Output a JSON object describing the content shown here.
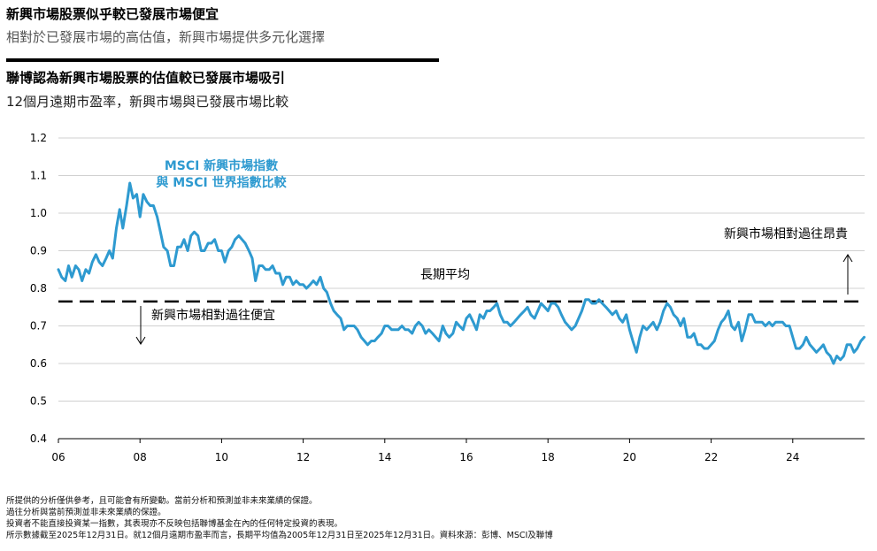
{
  "header": {
    "title": "新興市場股票似乎較已發展市場便宜",
    "subtitle": "相對於已發展市場的高估值，新興市場提供多元化選擇",
    "chart_title": "聯博認為新興市場股票的估值較已發展市場吸引",
    "chart_subtitle": "12個月遠期市盈率，新興市場與已發展市場比較"
  },
  "annotations": {
    "series_label_line1": "MSCI 新興市場指數",
    "series_label_line2": "與 MSCI 世界指數比較",
    "average_label": "長期平均",
    "expensive_label": "新興市場相對過往昂貴",
    "cheap_label": "新興市場相對過往便宜"
  },
  "footnotes": [
    "所提供的分析僅供參考，且可能會有所變動。當前分析和預測並非未來業績的保證。",
    "過往分析與當前預測並非未來業績的保證。",
    "投資者不能直接投資某一指數，其表現亦不反映包括聯博基金在內的任何特定投資的表現。",
    "所示數據截至2025年12月31日。就12個月遠期市盈率而言，長期平均值為2005年12月31日至2025年12月31日。資料來源：彭博、MSCI及聯博"
  ],
  "colors": {
    "series": "#2E9AD0",
    "grid": "#d0d0d0",
    "axis": "#000000",
    "average": "#000000"
  },
  "chart_data": {
    "type": "line",
    "x_tick_labels": [
      "06",
      "08",
      "10",
      "12",
      "14",
      "16",
      "18",
      "20",
      "22",
      "24"
    ],
    "x_tick_years": [
      2006,
      2008,
      2010,
      2012,
      2014,
      2016,
      2018,
      2020,
      2022,
      2024
    ],
    "xlim": [
      2006,
      2025.75
    ],
    "ylim": [
      0.4,
      1.2
    ],
    "y_ticks": [
      0.4,
      0.5,
      0.6,
      0.7,
      0.8,
      0.9,
      1.0,
      1.1,
      1.2
    ],
    "y_tick_labels": [
      "0.4",
      "0.5",
      "0.6",
      "0.7",
      "0.8",
      "0.9",
      "1.0",
      "1.1",
      "1.2"
    ],
    "grid": true,
    "long_term_average": 0.765,
    "series": [
      {
        "x": [
          2006.0,
          2006.08,
          2006.17,
          2006.25,
          2006.33,
          2006.42,
          2006.5,
          2006.58,
          2006.67,
          2006.75,
          2006.83,
          2006.92,
          2007.0,
          2007.08,
          2007.17,
          2007.25,
          2007.33,
          2007.42,
          2007.5,
          2007.58,
          2007.67,
          2007.75,
          2007.83,
          2007.92,
          2008.0,
          2008.08,
          2008.17,
          2008.25,
          2008.33,
          2008.42,
          2008.5,
          2008.58,
          2008.67,
          2008.75,
          2008.83,
          2008.92,
          2009.0,
          2009.08,
          2009.17,
          2009.25,
          2009.33,
          2009.42,
          2009.5,
          2009.58,
          2009.67,
          2009.75,
          2009.83,
          2009.92,
          2010.0,
          2010.08,
          2010.17,
          2010.25,
          2010.33,
          2010.42,
          2010.5,
          2010.58,
          2010.67,
          2010.75,
          2010.83,
          2010.92,
          2011.0,
          2011.08,
          2011.17,
          2011.25,
          2011.33,
          2011.42,
          2011.5,
          2011.58,
          2011.67,
          2011.75,
          2011.83,
          2011.92,
          2012.0,
          2012.08,
          2012.17,
          2012.25,
          2012.33,
          2012.42,
          2012.5,
          2012.58,
          2012.67,
          2012.75,
          2012.83,
          2012.92,
          2013.0,
          2013.08,
          2013.17,
          2013.25,
          2013.33,
          2013.42,
          2013.5,
          2013.58,
          2013.67,
          2013.75,
          2013.83,
          2013.92,
          2014.0,
          2014.08,
          2014.17,
          2014.25,
          2014.33,
          2014.42,
          2014.5,
          2014.58,
          2014.67,
          2014.75,
          2014.83,
          2014.92,
          2015.0,
          2015.08,
          2015.17,
          2015.25,
          2015.33,
          2015.42,
          2015.5,
          2015.58,
          2015.67,
          2015.75,
          2015.83,
          2015.92,
          2016.0,
          2016.08,
          2016.17,
          2016.25,
          2016.33,
          2016.42,
          2016.5,
          2016.58,
          2016.67,
          2016.75,
          2016.83,
          2016.92,
          2017.0,
          2017.08,
          2017.17,
          2017.25,
          2017.33,
          2017.42,
          2017.5,
          2017.58,
          2017.67,
          2017.75,
          2017.83,
          2017.92,
          2018.0,
          2018.08,
          2018.17,
          2018.25,
          2018.33,
          2018.42,
          2018.5,
          2018.58,
          2018.67,
          2018.75,
          2018.83,
          2018.92,
          2019.0,
          2019.08,
          2019.17,
          2019.25,
          2019.33,
          2019.42,
          2019.5,
          2019.58,
          2019.67,
          2019.75,
          2019.83,
          2019.92,
          2020.0,
          2020.08,
          2020.17,
          2020.25,
          2020.33,
          2020.42,
          2020.5,
          2020.58,
          2020.67,
          2020.75,
          2020.83,
          2020.92,
          2021.0,
          2021.08,
          2021.17,
          2021.25,
          2021.33,
          2021.42,
          2021.5,
          2021.58,
          2021.67,
          2021.75,
          2021.83,
          2021.92,
          2022.0,
          2022.08,
          2022.17,
          2022.25,
          2022.33,
          2022.42,
          2022.5,
          2022.58,
          2022.67,
          2022.75,
          2022.83,
          2022.92,
          2023.0,
          2023.08,
          2023.17,
          2023.25,
          2023.33,
          2023.42,
          2023.5,
          2023.58,
          2023.67,
          2023.75,
          2023.83,
          2023.92,
          2024.0,
          2024.08,
          2024.17,
          2024.25,
          2024.33,
          2024.42,
          2024.5,
          2024.58,
          2024.67,
          2024.75,
          2024.83,
          2024.92,
          2025.0,
          2025.08,
          2025.17,
          2025.25,
          2025.33,
          2025.42,
          2025.5,
          2025.58,
          2025.67,
          2025.75
        ],
        "y": [
          0.85,
          0.83,
          0.82,
          0.86,
          0.83,
          0.86,
          0.85,
          0.82,
          0.85,
          0.84,
          0.87,
          0.89,
          0.87,
          0.86,
          0.88,
          0.9,
          0.88,
          0.96,
          1.01,
          0.96,
          1.02,
          1.08,
          1.04,
          1.05,
          0.99,
          1.05,
          1.03,
          1.02,
          1.02,
          0.99,
          0.95,
          0.91,
          0.9,
          0.86,
          0.86,
          0.91,
          0.91,
          0.93,
          0.9,
          0.94,
          0.95,
          0.94,
          0.9,
          0.9,
          0.92,
          0.92,
          0.93,
          0.9,
          0.9,
          0.87,
          0.9,
          0.91,
          0.93,
          0.94,
          0.93,
          0.92,
          0.9,
          0.88,
          0.82,
          0.86,
          0.86,
          0.85,
          0.85,
          0.86,
          0.84,
          0.84,
          0.81,
          0.83,
          0.83,
          0.81,
          0.82,
          0.81,
          0.81,
          0.8,
          0.81,
          0.82,
          0.81,
          0.83,
          0.8,
          0.79,
          0.76,
          0.74,
          0.73,
          0.72,
          0.69,
          0.7,
          0.7,
          0.7,
          0.69,
          0.67,
          0.66,
          0.65,
          0.66,
          0.66,
          0.67,
          0.68,
          0.7,
          0.7,
          0.69,
          0.69,
          0.69,
          0.7,
          0.69,
          0.69,
          0.68,
          0.7,
          0.71,
          0.7,
          0.68,
          0.69,
          0.68,
          0.67,
          0.66,
          0.7,
          0.68,
          0.67,
          0.68,
          0.71,
          0.7,
          0.69,
          0.72,
          0.73,
          0.71,
          0.69,
          0.73,
          0.72,
          0.74,
          0.74,
          0.75,
          0.76,
          0.73,
          0.71,
          0.71,
          0.7,
          0.71,
          0.72,
          0.73,
          0.74,
          0.75,
          0.73,
          0.72,
          0.74,
          0.76,
          0.75,
          0.74,
          0.76,
          0.76,
          0.75,
          0.73,
          0.71,
          0.7,
          0.69,
          0.7,
          0.72,
          0.74,
          0.77,
          0.77,
          0.76,
          0.76,
          0.77,
          0.76,
          0.75,
          0.74,
          0.73,
          0.74,
          0.72,
          0.71,
          0.73,
          0.69,
          0.66,
          0.63,
          0.67,
          0.7,
          0.69,
          0.7,
          0.71,
          0.69,
          0.71,
          0.74,
          0.76,
          0.75,
          0.73,
          0.72,
          0.7,
          0.72,
          0.67,
          0.67,
          0.68,
          0.65,
          0.65,
          0.64,
          0.64,
          0.65,
          0.66,
          0.69,
          0.71,
          0.72,
          0.74,
          0.7,
          0.69,
          0.71,
          0.66,
          0.69,
          0.73,
          0.73,
          0.71,
          0.71,
          0.71,
          0.7,
          0.71,
          0.7,
          0.71,
          0.71,
          0.71,
          0.7,
          0.7,
          0.67,
          0.64,
          0.64,
          0.65,
          0.67,
          0.65,
          0.64,
          0.63,
          0.64,
          0.65,
          0.63,
          0.62,
          0.6,
          0.62,
          0.61,
          0.62,
          0.65,
          0.65,
          0.63,
          0.64,
          0.66,
          0.67
        ]
      }
    ]
  }
}
